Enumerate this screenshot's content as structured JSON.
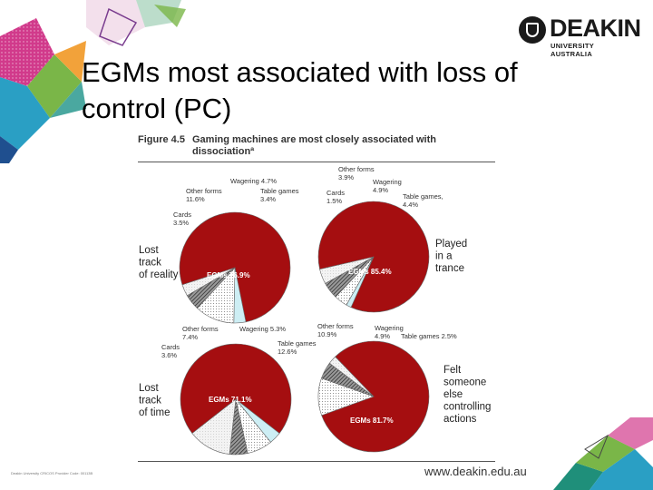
{
  "header": {
    "logo_name": "DEAKIN",
    "logo_sub": "UNIVERSITY AUSTRALIA"
  },
  "slide": {
    "title": "EGMs most associated with loss of control (PC)"
  },
  "figure": {
    "number": "Figure 4.5",
    "title": "Gaming machines are most closely associated with dissociationª"
  },
  "footer": {
    "left": "Deakin University CRICOS Provider Code: 00113B",
    "url": "www.deakin.edu.au"
  },
  "colors": {
    "egm": "#a50e10",
    "cards": "#cdeef4",
    "other_forms": "#ffffff",
    "wagering": "#555555",
    "table_games": "#eeeeee"
  },
  "chart_data": [
    {
      "type": "pie",
      "title": "Lost track of reality",
      "slices": [
        {
          "label": "EGMs 76.9%",
          "name": "EGMs",
          "value": 76.9
        },
        {
          "label": "Cards 3.5%",
          "name": "Cards",
          "value": 3.5
        },
        {
          "label": "Other forms 11.6%",
          "name": "Other forms",
          "value": 11.6
        },
        {
          "label": "Wagering 4.7%",
          "name": "Wagering",
          "value": 4.7
        },
        {
          "label": "Table games 3.4%",
          "name": "Table games",
          "value": 3.4
        }
      ]
    },
    {
      "type": "pie",
      "title": "Played in a trance",
      "slices": [
        {
          "label": "EGMs 85.4%",
          "name": "EGMs",
          "value": 85.4
        },
        {
          "label": "Cards 1.5%",
          "name": "Cards",
          "value": 1.5
        },
        {
          "label": "Other forms 3.9%",
          "name": "Other forms",
          "value": 3.9
        },
        {
          "label": "Wagering 4.9%",
          "name": "Wagering",
          "value": 4.9
        },
        {
          "label": "Table games, 4.4%",
          "name": "Table games",
          "value": 4.4
        }
      ]
    },
    {
      "type": "pie",
      "title": "Lost track of time",
      "slices": [
        {
          "label": "EGMs 71.1%",
          "name": "EGMs",
          "value": 71.1
        },
        {
          "label": "Cards 3.6%",
          "name": "Cards",
          "value": 3.6
        },
        {
          "label": "Other forms 7.4%",
          "name": "Other forms",
          "value": 7.4
        },
        {
          "label": "Wagering 5.3%",
          "name": "Wagering",
          "value": 5.3
        },
        {
          "label": "Table games 12.6%",
          "name": "Table games",
          "value": 12.6
        }
      ]
    },
    {
      "type": "pie",
      "title": "Felt someone else controlling actions",
      "slices": [
        {
          "label": "EGMs 81.7%",
          "name": "EGMs",
          "value": 81.7
        },
        {
          "label": "Other forms 10.9%",
          "name": "Other forms",
          "value": 10.9
        },
        {
          "label": "Wagering 4.9%",
          "name": "Wagering",
          "value": 4.9
        },
        {
          "label": "Table games 2.5%",
          "name": "Table games",
          "value": 2.5
        }
      ]
    }
  ]
}
